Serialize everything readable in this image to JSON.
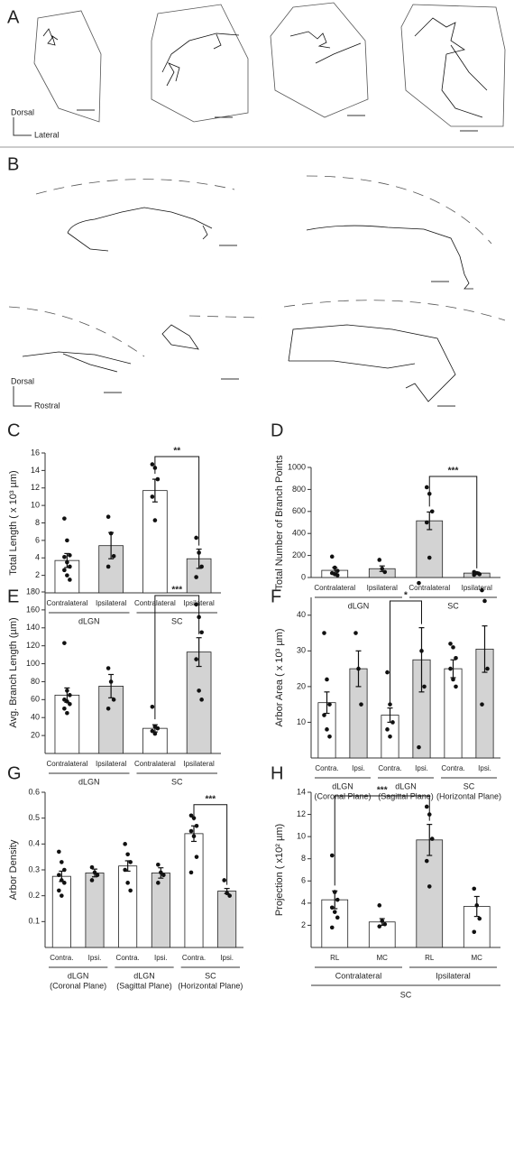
{
  "panels": {
    "a": {
      "letter": "A",
      "up": "Dorsal",
      "right": "Lateral"
    },
    "b": {
      "letter": "B",
      "up": "Dorsal",
      "right": "Rostral"
    }
  },
  "chart_data": [
    {
      "type": "bar",
      "panel": "C",
      "ylabel": "Total Length ( x 10³ µm)",
      "ylim": [
        0,
        16
      ],
      "yticks": [
        2,
        4,
        6,
        8,
        10,
        12,
        14,
        16
      ],
      "groups": [
        {
          "label": "dLGN",
          "categories": [
            "Contralateral",
            "Ipsilateral"
          ],
          "values": [
            3.7,
            5.4
          ],
          "errors": [
            0.8,
            1.5
          ],
          "colors": [
            "#ffffff",
            "#d3d3d3"
          ],
          "points": [
            [
              8.5,
              6.0,
              4.3,
              4.1,
              3.5,
              3.0,
              2.6,
              2.0,
              1.5
            ],
            [
              8.7,
              6.8,
              4.2,
              3.0
            ]
          ]
        },
        {
          "label": "SC",
          "categories": [
            "Contralateral",
            "Ipsilateral"
          ],
          "values": [
            11.7,
            3.9
          ],
          "errors": [
            1.3,
            1.1
          ],
          "colors": [
            "#ffffff",
            "#d3d3d3"
          ],
          "points": [
            [
              14.7,
              14.3,
              13.0,
              11.0,
              8.3
            ],
            [
              6.3,
              4.6,
              3.0,
              1.8
            ]
          ]
        }
      ],
      "bracket": {
        "label": "**",
        "bars": [
          2,
          3
        ]
      }
    },
    {
      "type": "bar",
      "panel": "D",
      "ylabel": "Total Number of Branch Points",
      "ylim": [
        0,
        1000
      ],
      "yticks": [
        0,
        200,
        400,
        600,
        800,
        1000
      ],
      "groups": [
        {
          "label": "dLGN",
          "categories": [
            "Contralateral",
            "Ipsilateral"
          ],
          "values": [
            65,
            80
          ],
          "errors": [
            25,
            25
          ],
          "colors": [
            "#ffffff",
            "#d3d3d3"
          ],
          "points": [
            [
              190,
              90,
              60,
              40,
              30,
              20
            ],
            [
              160,
              80,
              50
            ]
          ]
        },
        {
          "label": "SC",
          "categories": [
            "Contralateral",
            "Ipsilateral"
          ],
          "values": [
            515,
            40
          ],
          "errors": [
            80,
            10
          ],
          "colors": [
            "#d3d3d3",
            "#d3d3d3"
          ],
          "points": [
            [
              820,
              760,
              600,
              500,
              180
            ],
            [
              50,
              40,
              30,
              25
            ]
          ]
        }
      ],
      "bracket": {
        "label": "***",
        "bars": [
          2,
          3
        ]
      }
    },
    {
      "type": "bar",
      "panel": "E",
      "ylabel": "Avg. Branch Length (µm)",
      "ylim": [
        0,
        180
      ],
      "yticks": [
        20,
        40,
        60,
        80,
        100,
        120,
        140,
        160,
        180
      ],
      "groups": [
        {
          "label": "dLGN",
          "categories": [
            "Contralateral",
            "Ipsilateral"
          ],
          "values": [
            65,
            75
          ],
          "errors": [
            8,
            13
          ],
          "colors": [
            "#ffffff",
            "#d3d3d3"
          ],
          "points": [
            [
              123,
              70,
              65,
              60,
              58,
              55,
              50,
              45
            ],
            [
              95,
              80,
              60,
              50
            ]
          ]
        },
        {
          "label": "SC",
          "categories": [
            "Contralateral",
            "Ipsilateral"
          ],
          "values": [
            28,
            113
          ],
          "errors": [
            4,
            16
          ],
          "colors": [
            "#ffffff",
            "#d3d3d3"
          ],
          "points": [
            [
              52,
              30,
              28,
              25,
              22
            ],
            [
              166,
              152,
              135,
              105,
              70,
              60
            ]
          ]
        }
      ],
      "bracket": {
        "label": "***",
        "bars": [
          2,
          3
        ]
      }
    },
    {
      "type": "bar",
      "panel": "F",
      "ylabel": "Arbor Area ( x 10³ µm)",
      "ylim": [
        0,
        45
      ],
      "yticks": [
        10,
        20,
        30,
        40
      ],
      "groups": [
        {
          "label": "dLGN",
          "note": "(Coronal Plane)",
          "categories": [
            "Contra.",
            "Ipsi."
          ],
          "values": [
            15.5,
            25
          ],
          "errors": [
            3,
            5
          ],
          "colors": [
            "#ffffff",
            "#d3d3d3"
          ],
          "points": [
            [
              35,
              22,
              15,
              12,
              8,
              6
            ],
            [
              35,
              25,
              15
            ]
          ]
        },
        {
          "label": "dLGN",
          "note": "(Sagittal Plane)",
          "categories": [
            "Contra.",
            "Ipsi."
          ],
          "values": [
            12,
            27.5
          ],
          "errors": [
            2,
            9
          ],
          "colors": [
            "#ffffff",
            "#d3d3d3"
          ],
          "points": [
            [
              24,
              15,
              10,
              8,
              6
            ],
            [
              49,
              30,
              20,
              3
            ]
          ]
        },
        {
          "label": "SC",
          "note": "(Horizontal Plane)",
          "categories": [
            "Contra.",
            "Ipsi."
          ],
          "values": [
            25,
            30.5
          ],
          "errors": [
            2.5,
            6.5
          ],
          "colors": [
            "#ffffff",
            "#d3d3d3"
          ],
          "points": [
            [
              32,
              31,
              28,
              25,
              22,
              20
            ],
            [
              47,
              44,
              25,
              15
            ]
          ]
        }
      ],
      "bracket": {
        "label": "*",
        "bars": [
          2,
          3
        ]
      }
    },
    {
      "type": "bar",
      "panel": "G",
      "ylabel": "Arbor Density",
      "ylim": [
        0,
        0.6
      ],
      "yticks": [
        0.1,
        0.2,
        0.3,
        0.4,
        0.5,
        0.6
      ],
      "groups": [
        {
          "label": "dLGN",
          "note": "(Coronal Plane)",
          "categories": [
            "Contra.",
            "Ipsi."
          ],
          "values": [
            0.275,
            0.288
          ],
          "errors": [
            0.02,
            0.015
          ],
          "colors": [
            "#ffffff",
            "#d3d3d3"
          ],
          "points": [
            [
              0.37,
              0.33,
              0.3,
              0.28,
              0.26,
              0.25,
              0.22,
              0.2
            ],
            [
              0.31,
              0.29,
              0.28,
              0.26
            ]
          ]
        },
        {
          "label": "dLGN",
          "note": "(Sagittal Plane)",
          "categories": [
            "Contra.",
            "Ipsi."
          ],
          "values": [
            0.315,
            0.288
          ],
          "errors": [
            0.02,
            0.02
          ],
          "colors": [
            "#ffffff",
            "#d3d3d3"
          ],
          "points": [
            [
              0.4,
              0.36,
              0.33,
              0.3,
              0.25,
              0.22
            ],
            [
              0.32,
              0.29,
              0.28,
              0.25
            ]
          ]
        },
        {
          "label": "SC",
          "note": "(Horizontal Plane)",
          "categories": [
            "Contra.",
            "Ipsi."
          ],
          "values": [
            0.44,
            0.218
          ],
          "errors": [
            0.03,
            0.01
          ],
          "colors": [
            "#ffffff",
            "#d3d3d3"
          ],
          "points": [
            [
              0.51,
              0.5,
              0.47,
              0.45,
              0.43,
              0.35,
              0.29
            ],
            [
              0.26,
              0.21,
              0.2
            ]
          ]
        }
      ],
      "bracket": {
        "label": "***",
        "bars": [
          4,
          5
        ]
      }
    },
    {
      "type": "bar",
      "panel": "H",
      "ylabel": "Projection ( x10² µm)",
      "ylim": [
        0,
        14
      ],
      "yticks": [
        2,
        4,
        6,
        8,
        10,
        12,
        14
      ],
      "supergroup": "SC",
      "groups": [
        {
          "label": "Contralateral",
          "categories": [
            "RL",
            "MC"
          ],
          "values": [
            4.3,
            2.3
          ],
          "errors": [
            0.8,
            0.3
          ],
          "colors": [
            "#ffffff",
            "#ffffff"
          ],
          "points": [
            [
              8.3,
              5.0,
              4.3,
              3.6,
              3.2,
              2.7,
              1.8
            ],
            [
              3.8,
              2.4,
              2.1,
              1.9
            ]
          ]
        },
        {
          "label": "Ipsilateral",
          "categories": [
            "RL",
            "MC"
          ],
          "values": [
            9.7,
            3.7
          ],
          "errors": [
            1.4,
            0.9
          ],
          "colors": [
            "#d3d3d3",
            "#ffffff"
          ],
          "points": [
            [
              12.7,
              12.0,
              9.8,
              7.8,
              5.5
            ],
            [
              5.3,
              3.8,
              2.6,
              1.4
            ]
          ]
        }
      ],
      "bracket": {
        "label": "***",
        "bars": [
          0,
          2
        ]
      }
    }
  ]
}
